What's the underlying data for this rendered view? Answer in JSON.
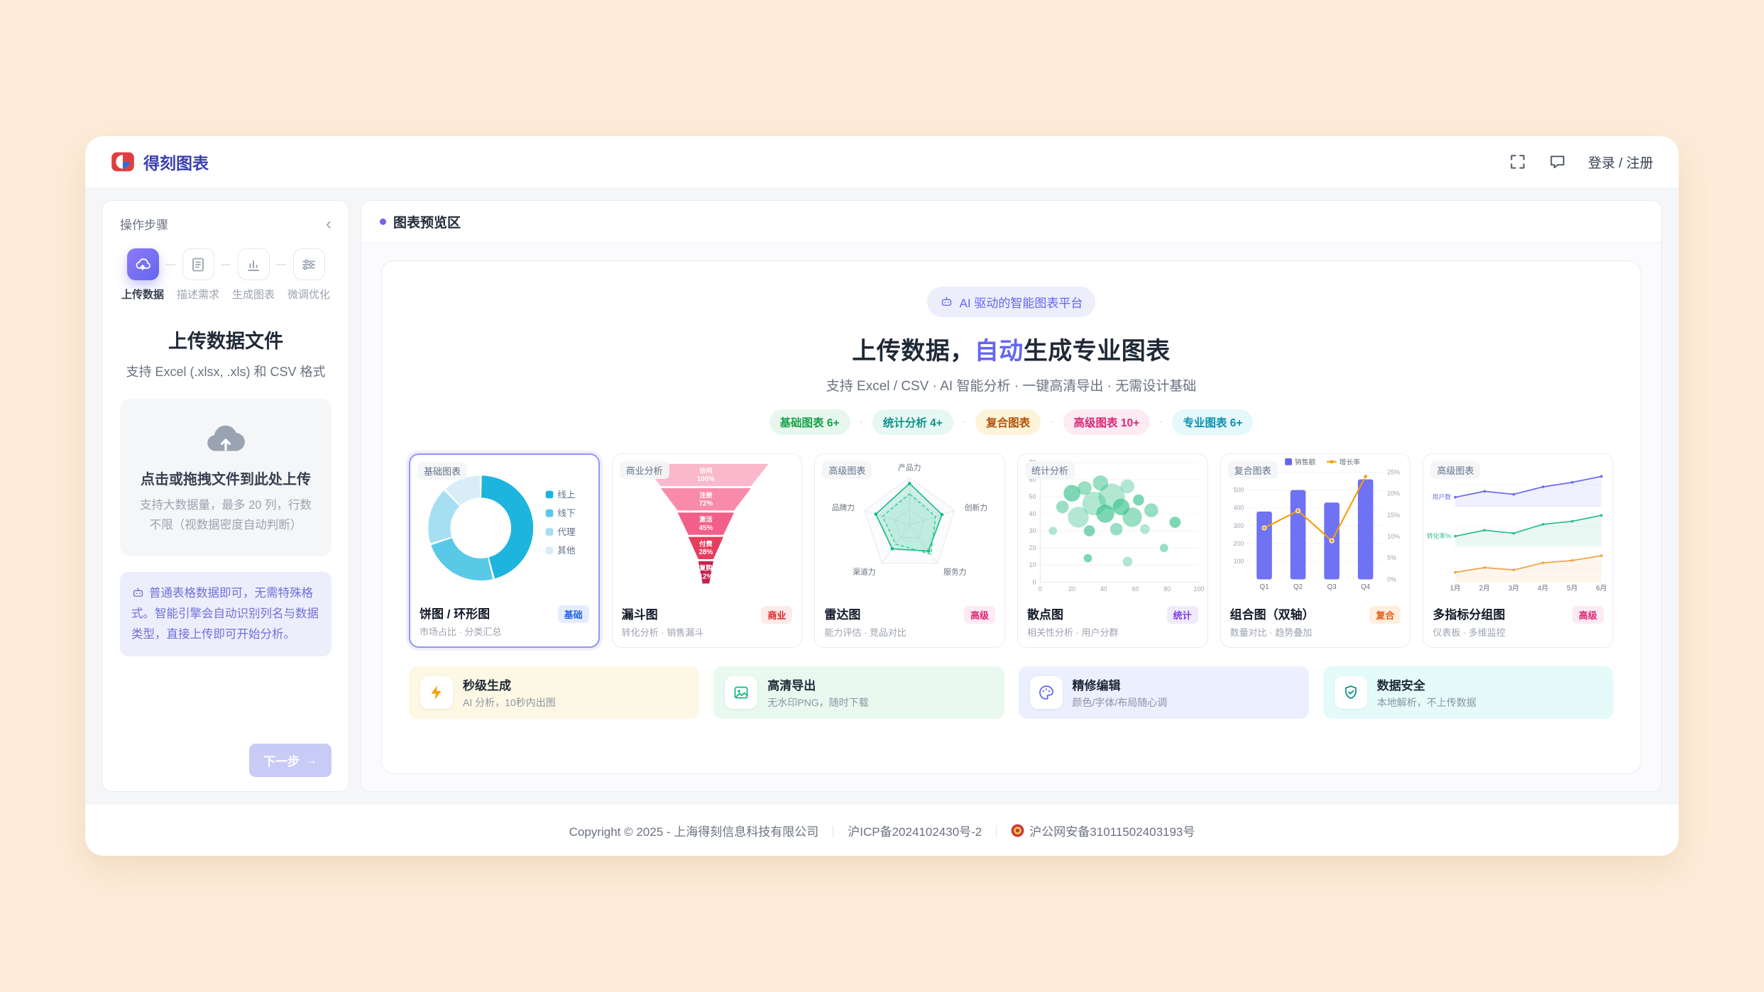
{
  "navbar": {
    "brand": "得刻图表",
    "login_register": "登录 / 注册"
  },
  "sidebar": {
    "panel_title": "操作步骤",
    "collapse_glyph": "‹",
    "steps": [
      {
        "label": "上传数据",
        "active": true
      },
      {
        "label": "描述需求",
        "active": false
      },
      {
        "label": "生成图表",
        "active": false
      },
      {
        "label": "微调优化",
        "active": false
      }
    ],
    "title": "上传数据文件",
    "subtitle": "支持 Excel (.xlsx, .xls) 和 CSV 格式",
    "dropzone": {
      "title": "点击或拖拽文件到此处上传",
      "hint": "支持大数据量，最多 20 列，行数不限（视数据密度自动判断）"
    },
    "note": "普通表格数据即可，无需特殊格式。智能引擎会自动识别列名与数据类型，直接上传即可开始分析。",
    "next_button": "下一步",
    "next_arrow": "→"
  },
  "main": {
    "section_title": "图表预览区",
    "hero": {
      "badge": "AI 驱动的智能图表平台",
      "title_prefix": "上传数据，",
      "title_highlight": "自动",
      "title_suffix": "生成专业图表",
      "subtitle": "支持 Excel / CSV · AI 智能分析 · 一键高清导出 · 无需设计基础",
      "pill_separator": "·",
      "pills": [
        {
          "label": "基础图表 6+",
          "color": "#16a34a",
          "bg": "#e8f7ee"
        },
        {
          "label": "统计分析 4+",
          "color": "#0d9488",
          "bg": "#e6f7f4"
        },
        {
          "label": "复合图表",
          "color": "#b45309",
          "bg": "#fdf3d8"
        },
        {
          "label": "高级图表 10+",
          "color": "#db2777",
          "bg": "#fdeaf2"
        },
        {
          "label": "专业图表 6+",
          "color": "#0891b2",
          "bg": "#e5f8fb"
        }
      ]
    },
    "cards": [
      {
        "tag": "基础图表",
        "name": "饼图 / 环形图",
        "desc": "市场占比 · 分类汇总",
        "badge": "基础",
        "badge_color": "#2563eb",
        "badge_bg": "#e4edfd",
        "chart": "donut",
        "selected": true
      },
      {
        "tag": "商业分析",
        "name": "漏斗图",
        "desc": "转化分析 · 销售漏斗",
        "badge": "商业",
        "badge_color": "#dc2626",
        "badge_bg": "#fdeaea",
        "chart": "funnel",
        "selected": false
      },
      {
        "tag": "高级图表",
        "name": "雷达图",
        "desc": "能力评估 · 竞品对比",
        "badge": "高级",
        "badge_color": "#db2777",
        "badge_bg": "#fdeaf2",
        "chart": "radar",
        "selected": false
      },
      {
        "tag": "统计分析",
        "name": "散点图",
        "desc": "相关性分析 · 用户分群",
        "badge": "统计",
        "badge_color": "#7c3aed",
        "badge_bg": "#f0eafd",
        "chart": "scatter",
        "selected": false
      },
      {
        "tag": "复合图表",
        "name": "组合图（双轴）",
        "desc": "数量对比 · 趋势叠加",
        "badge": "复合",
        "badge_color": "#ea580c",
        "badge_bg": "#fdeede",
        "chart": "combo",
        "selected": false
      },
      {
        "tag": "高级图表",
        "name": "多指标分组图",
        "desc": "仪表板 · 多维监控",
        "badge": "高级",
        "badge_color": "#db2777",
        "badge_bg": "#fdeaf2",
        "chart": "multiline",
        "selected": false
      }
    ],
    "features": [
      {
        "title": "秒级生成",
        "desc": "AI 分析，10秒内出图",
        "bg": "#fdf8e3",
        "icon": "bolt-icon"
      },
      {
        "title": "高清导出",
        "desc": "无水印PNG，随时下载",
        "bg": "#e9f9f0",
        "icon": "image-icon"
      },
      {
        "title": "精修编辑",
        "desc": "颜色/字体/布局随心调",
        "bg": "#eceffd",
        "icon": "palette-icon"
      },
      {
        "title": "数据安全",
        "desc": "本地解析，不上传数据",
        "bg": "#e4fbfa",
        "icon": "shield-icon"
      }
    ]
  },
  "footer": {
    "copyright": "Copyright © 2025 - 上海得刻信息科技有限公司",
    "separator": "｜",
    "icp": "沪ICP备2024102430号-2",
    "police": "沪公网安备31011502403193号"
  },
  "chart_data": [
    {
      "id": "donut",
      "type": "pie",
      "labels": [
        "线上",
        "线下",
        "代理",
        "其他"
      ],
      "values": [
        46,
        24,
        18,
        12
      ],
      "colors": [
        "#1db4de",
        "#59c9e8",
        "#a7dff2",
        "#d8edf8"
      ]
    },
    {
      "id": "funnel",
      "type": "funnel",
      "stages": [
        {
          "label": "访问",
          "pct": "100%"
        },
        {
          "label": "注册",
          "pct": "72%"
        },
        {
          "label": "激活",
          "pct": "45%"
        },
        {
          "label": "付费",
          "pct": "28%"
        },
        {
          "label": "复购",
          "pct": "12%"
        }
      ],
      "widths": [
        100,
        72,
        45,
        28,
        12
      ],
      "colors": [
        "#f9b8cb",
        "#f78ba9",
        "#f25f88",
        "#e63f5e",
        "#c42350"
      ]
    },
    {
      "id": "radar",
      "type": "radar",
      "axes": [
        "产品力",
        "创新力",
        "服务力",
        "渠道力",
        "品牌力"
      ],
      "max": 100,
      "series": [
        {
          "values": [
            88,
            72,
            68,
            62,
            75
          ]
        },
        {
          "values": [
            66,
            58,
            76,
            50,
            60
          ]
        }
      ],
      "colors": [
        "#10b981",
        "#34d399"
      ]
    },
    {
      "id": "scatter",
      "type": "scatter",
      "xlim": [
        0,
        100
      ],
      "ylim": [
        0,
        70
      ],
      "xticks": [
        0,
        20,
        40,
        60,
        80,
        100
      ],
      "yticks": [
        0,
        10,
        20,
        30,
        40,
        50,
        60,
        70
      ],
      "color": "#34c08b",
      "points": [
        [
          8,
          30,
          6
        ],
        [
          14,
          44,
          9
        ],
        [
          20,
          52,
          12
        ],
        [
          24,
          38,
          15
        ],
        [
          28,
          55,
          10
        ],
        [
          31,
          30,
          8
        ],
        [
          34,
          46,
          17
        ],
        [
          38,
          58,
          11
        ],
        [
          41,
          40,
          13
        ],
        [
          45,
          50,
          19
        ],
        [
          48,
          31,
          9
        ],
        [
          51,
          44,
          12
        ],
        [
          55,
          56,
          10
        ],
        [
          58,
          38,
          14
        ],
        [
          62,
          48,
          8
        ],
        [
          66,
          31,
          7
        ],
        [
          70,
          42,
          10
        ],
        [
          30,
          14,
          6
        ],
        [
          55,
          12,
          7
        ],
        [
          78,
          20,
          6
        ],
        [
          85,
          35,
          8
        ]
      ]
    },
    {
      "id": "combo",
      "type": "combo",
      "categories": [
        "Q1",
        "Q2",
        "Q3",
        "Q4"
      ],
      "bar_series": {
        "name": "销售额",
        "values": [
          380,
          500,
          430,
          560
        ],
        "color": "#6366f1"
      },
      "line_series": {
        "name": "增长率",
        "values": [
          12,
          16,
          9,
          24
        ],
        "color": "#f59e0b"
      },
      "y_left_ticks": [
        100,
        200,
        300,
        400,
        500,
        600
      ],
      "y_left_max": 600,
      "y_right_ticks": [
        0,
        5,
        10,
        15,
        20,
        25
      ],
      "y_right_max": 25
    },
    {
      "id": "multiline",
      "type": "line",
      "x": [
        "1月",
        "2月",
        "3月",
        "4月",
        "5月",
        "6月"
      ],
      "series": [
        {
          "name": "用户数",
          "color": "#6a6df2",
          "values": [
            7200,
            7600,
            7400,
            7900,
            8200,
            8600
          ]
        },
        {
          "name": "转化率%",
          "color": "#2fbf8f",
          "values": [
            4200,
            4600,
            4400,
            5000,
            5200,
            5600
          ]
        },
        {
          "name": "",
          "color": "#f2a444",
          "values": [
            1800,
            2000,
            1900,
            2200,
            2300,
            2500
          ]
        }
      ]
    }
  ]
}
